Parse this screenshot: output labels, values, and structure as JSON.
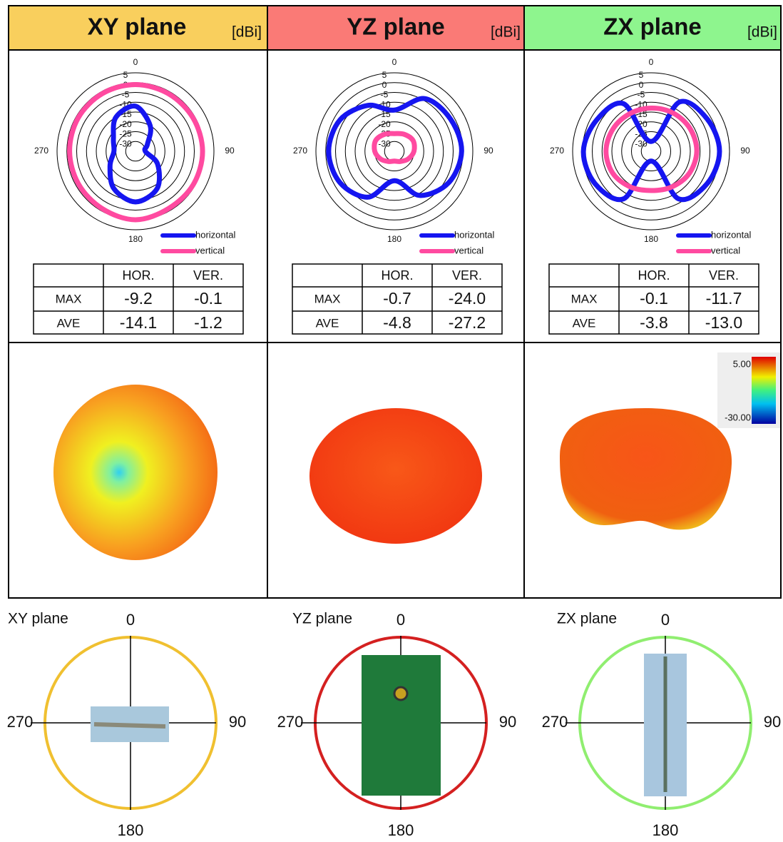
{
  "panels": [
    {
      "title": "XY plane",
      "unit": "[dBi]",
      "header_color": "#f9cf5d",
      "polar": {
        "angle_ticks": [
          0,
          90,
          180,
          270
        ],
        "rlim": [
          -35,
          5
        ],
        "rticks": [
          5,
          0,
          -5,
          -10,
          -15,
          -20,
          -25,
          -30
        ],
        "angles": [
          0,
          30,
          60,
          90,
          120,
          150,
          180,
          210,
          240,
          270,
          300,
          330
        ],
        "series": [
          {
            "name": "horizontal",
            "color": "#1515f0",
            "values": [
              -12,
              -20,
              -28,
              -30,
              -22,
              -13,
              -9.2,
              -13,
              -20,
              -24,
              -22,
              -15
            ]
          },
          {
            "name": "vertical",
            "color": "#ff4aa0",
            "values": [
              -1,
              -1.2,
              -1.1,
              -0.8,
              -1,
              -1.3,
              -0.1,
              -1.2,
              -1.5,
              -1.4,
              -1.2,
              -1.1
            ]
          }
        ]
      },
      "table": {
        "header": [
          "HOR.",
          "VER."
        ],
        "rows": [
          [
            "MAX",
            "-9.2",
            "-0.1"
          ],
          [
            "AVE",
            "-14.1",
            "-1.2"
          ]
        ]
      }
    },
    {
      "title": "YZ plane",
      "unit": "[dBi]",
      "header_color": "#fa7a76",
      "polar": {
        "angle_ticks": [
          0,
          90,
          180,
          270
        ],
        "rlim": [
          -35,
          5
        ],
        "rticks": [
          5,
          0,
          -5,
          -10,
          -15,
          -20,
          -25,
          -30
        ],
        "angles": [
          0,
          30,
          60,
          90,
          120,
          150,
          180,
          210,
          240,
          270,
          300,
          330
        ],
        "series": [
          {
            "name": "horizontal",
            "color": "#1515f0",
            "values": [
              -14,
              -4,
              -2,
              -0.7,
              -3,
              -9,
              -20,
              -8,
              -3,
              -1.5,
              -3,
              -8
            ]
          },
          {
            "name": "vertical",
            "color": "#ff4aa0",
            "values": [
              -26,
              -25,
              -24,
              -25,
              -27,
              -29,
              -30,
              -29,
              -27,
              -25,
              -24,
              -25
            ]
          }
        ]
      },
      "table": {
        "header": [
          "HOR.",
          "VER."
        ],
        "rows": [
          [
            "MAX",
            "-0.7",
            "-24.0"
          ],
          [
            "AVE",
            "-4.8",
            "-27.2"
          ]
        ]
      }
    },
    {
      "title": "ZX plane",
      "unit": "[dBi]",
      "header_color": "#8ef58e",
      "polar": {
        "angle_ticks": [
          0,
          90,
          180,
          270
        ],
        "rlim": [
          -35,
          5
        ],
        "rticks": [
          5,
          0,
          -5,
          -10,
          -15,
          -20,
          -25,
          -30
        ],
        "angles": [
          0,
          30,
          60,
          90,
          120,
          150,
          180,
          210,
          240,
          270,
          300,
          330
        ],
        "series": [
          {
            "name": "horizontal",
            "color": "#1515f0",
            "values": [
              -30,
              -6,
              -2,
              -0.1,
              -2,
              -7,
              -30,
              -7,
              -2,
              -0.5,
              -3,
              -7
            ]
          },
          {
            "name": "vertical",
            "color": "#ff4aa0",
            "values": [
              -13,
              -12.5,
              -12,
              -11.7,
              -12.5,
              -14,
              -15,
              -14,
              -12.5,
              -12,
              -12.5,
              -13
            ]
          }
        ]
      },
      "table": {
        "header": [
          "HOR.",
          "VER."
        ],
        "rows": [
          [
            "MAX",
            "-0.1",
            "-11.7"
          ],
          [
            "AVE",
            "-3.8",
            "-13.0"
          ]
        ]
      }
    }
  ],
  "colorbar": {
    "labels": [
      "5.00",
      "-30.00"
    ]
  },
  "orientation": [
    {
      "label": "XY plane",
      "ring_color": "#f0c030",
      "angles": [
        0,
        90,
        180,
        270
      ]
    },
    {
      "label": "YZ plane",
      "ring_color": "#d42020",
      "angles": [
        0,
        90,
        180,
        270
      ]
    },
    {
      "label": "ZX plane",
      "ring_color": "#90ee70",
      "angles": [
        0,
        90,
        180,
        270
      ]
    }
  ]
}
